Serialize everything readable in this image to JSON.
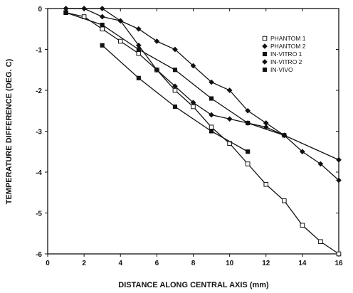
{
  "chart_data": {
    "type": "line",
    "xlabel": "DISTANCE ALONG CENTRAL AXIS (mm)",
    "ylabel": "TEMPERATURE DIFFERENCE (DEG. C)",
    "xlim": [
      0,
      16
    ],
    "ylim": [
      -6,
      0
    ],
    "xticks": [
      0,
      2,
      4,
      6,
      8,
      10,
      12,
      14,
      16
    ],
    "yticks": [
      0,
      -1,
      -2,
      -3,
      -4,
      -5,
      -6
    ],
    "grid": false,
    "legend_position": "top-right",
    "series": [
      {
        "name": "PHANTOM 1",
        "marker": "open-square",
        "x": [
          1,
          2,
          3,
          4,
          5,
          6,
          7,
          8,
          9,
          10,
          11,
          12,
          13,
          14,
          15,
          16
        ],
        "y": [
          -0.1,
          -0.2,
          -0.5,
          -0.8,
          -1.1,
          -1.5,
          -2.0,
          -2.4,
          -2.9,
          -3.3,
          -3.8,
          -4.3,
          -4.7,
          -5.3,
          -5.7,
          -6.0
        ]
      },
      {
        "name": "PHANTOM 2",
        "marker": "filled-diamond",
        "x": [
          1,
          2,
          3,
          4,
          5,
          6,
          7,
          8,
          9,
          10,
          11,
          12,
          13,
          14,
          15,
          16
        ],
        "y": [
          0,
          0,
          -0.2,
          -0.3,
          -0.5,
          -0.8,
          -1.0,
          -1.4,
          -1.8,
          -2.0,
          -2.5,
          -2.8,
          -3.1,
          -3.5,
          -3.8,
          -4.2
        ]
      },
      {
        "name": "IN-VITRO 1",
        "marker": "filled-square",
        "x": [
          1,
          3,
          5,
          7,
          9,
          11,
          13
        ],
        "y": [
          -0.1,
          -0.4,
          -1.0,
          -1.5,
          -2.2,
          -2.8,
          -3.1
        ]
      },
      {
        "name": "IN-VITRO 2",
        "marker": "filled-diamond",
        "x": [
          1,
          2,
          3,
          4,
          5,
          6,
          7,
          8,
          9,
          10,
          11,
          12,
          13,
          16
        ],
        "y": [
          0,
          0,
          0,
          -0.3,
          -0.9,
          -1.5,
          -1.9,
          -2.3,
          -2.6,
          -2.7,
          -2.8,
          -2.9,
          -3.1,
          -3.7
        ]
      },
      {
        "name": "IN-VIVO",
        "marker": "filled-square",
        "x": [
          3,
          5,
          7,
          9,
          11
        ],
        "y": [
          -0.9,
          -1.7,
          -2.4,
          -3.0,
          -3.5
        ]
      }
    ]
  }
}
